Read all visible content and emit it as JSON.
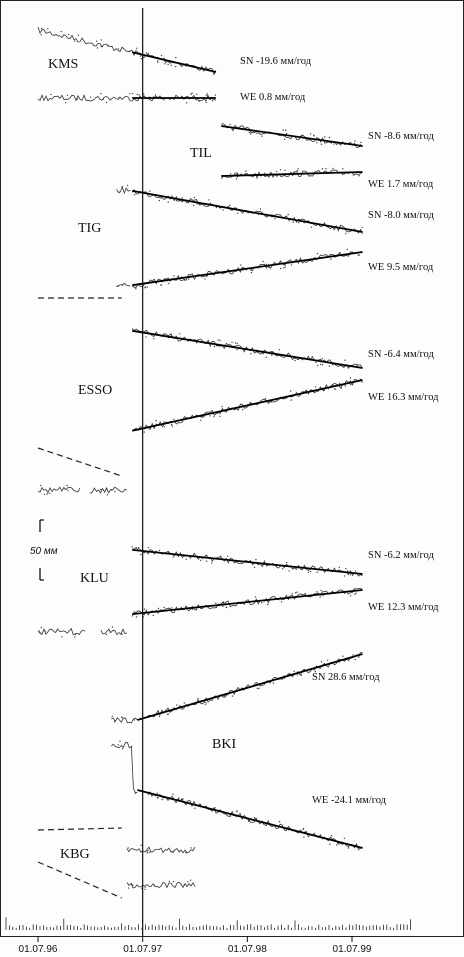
{
  "chart_data": {
    "type": "line",
    "xlabel": "",
    "ylabel": "",
    "x_ticks": [
      "01.07.96",
      "01.07.97",
      "01.07.98",
      "01.07.99"
    ],
    "x_range": [
      1996.5,
      1999.95
    ],
    "event_line_x": "01.07.97",
    "scale_bar": "50 мм",
    "rate_unit": "мм/год",
    "stations": [
      {
        "name": "KMS",
        "series": [
          {
            "component": "SN",
            "rate_label": "SN  -19.6 мм/год",
            "rate": -19.6,
            "start": 1996.5,
            "end": 1998.2
          },
          {
            "component": "WE",
            "rate_label": "WE  0.8 мм/год",
            "rate": 0.8,
            "start": 1996.5,
            "end": 1998.2
          }
        ]
      },
      {
        "name": "TIL",
        "series": [
          {
            "component": "SN",
            "rate_label": "SN  -8.6 мм/год",
            "rate": -8.6,
            "start": 1998.25,
            "end": 1999.6
          },
          {
            "component": "WE",
            "rate_label": "WE  1.7 мм/год",
            "rate": 1.7,
            "start": 1998.25,
            "end": 1999.6
          }
        ]
      },
      {
        "name": "TIG",
        "series": [
          {
            "component": "SN",
            "rate_label": "SN  -8.0 мм/год",
            "rate": -8.0,
            "start": 1997.35,
            "end": 1999.6
          },
          {
            "component": "WE",
            "rate_label": "WE  9.5 мм/год",
            "rate": 9.5,
            "start": 1997.35,
            "end": 1999.6
          }
        ]
      },
      {
        "name": "ESSO",
        "series": [
          {
            "component": "SN",
            "rate_label": "SN  -6.4 мм/год",
            "rate": -6.4,
            "start": 1997.35,
            "end": 1999.6
          },
          {
            "component": "WE",
            "rate_label": "WE  16.3 мм/год",
            "rate": 16.3,
            "start": 1997.35,
            "end": 1999.6
          }
        ]
      },
      {
        "name": "KLU",
        "series": [
          {
            "component": "SN",
            "rate_label": "SN  -6.2 мм/год",
            "rate": -6.2,
            "start": 1996.5,
            "end": 1999.6
          },
          {
            "component": "WE",
            "rate_label": "WE  12.3 мм/год",
            "rate": 12.3,
            "start": 1996.5,
            "end": 1999.6
          }
        ]
      },
      {
        "name": "BKI",
        "series": [
          {
            "component": "SN",
            "rate_label": "SN  28.6 мм/год",
            "rate": 28.6,
            "start": 1997.45,
            "end": 1999.6
          },
          {
            "component": "WE",
            "rate_label": "WE  -24.1 мм/год",
            "rate": -24.1,
            "start": 1997.45,
            "end": 1999.6
          }
        ]
      },
      {
        "name": "KBG",
        "series": [
          {
            "component": "SN",
            "rate_label": "",
            "start": 1997.35,
            "end": 1998.0
          },
          {
            "component": "WE",
            "rate_label": "",
            "start": 1997.35,
            "end": 1998.0
          }
        ]
      }
    ]
  }
}
